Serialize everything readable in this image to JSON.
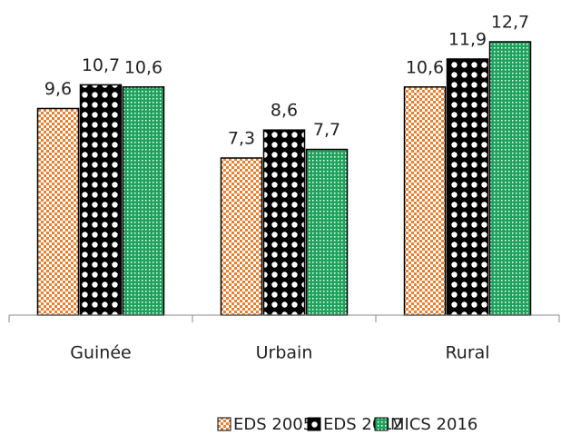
{
  "chart_data": {
    "type": "bar",
    "categories": [
      "Guinée",
      "Urbain",
      "Rural"
    ],
    "series": [
      {
        "name": "EDS 2005",
        "color": "#e8802f",
        "values": [
          9.6,
          7.3,
          10.6
        ],
        "value_labels": [
          "9,6",
          "7,3",
          "10,6"
        ]
      },
      {
        "name": "EDS 2012",
        "color": "#000000",
        "values": [
          10.7,
          8.6,
          11.9
        ],
        "value_labels": [
          "10,7",
          "8,6",
          "11,9"
        ]
      },
      {
        "name": "MICS 2016",
        "color": "#1fa35c",
        "values": [
          10.6,
          7.7,
          12.7
        ],
        "value_labels": [
          "10,6",
          "7,7",
          "12,7"
        ]
      }
    ],
    "legend": "bottom"
  }
}
